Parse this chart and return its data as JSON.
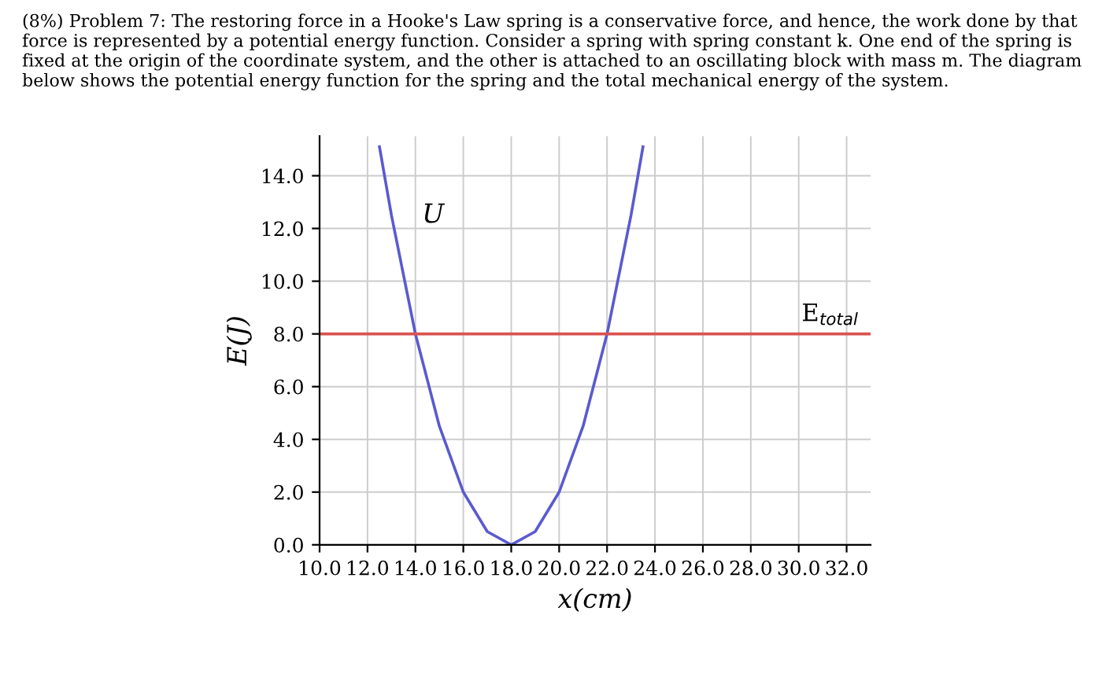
{
  "chart_data": {
    "type": "line",
    "annotations": [
      "(8%) Problem 7: The restoring force in a Hooke's Law spring is a conservative force, and hence, the work done by that force is represented by a potential energy function. Consider a spring with spring constant k. One end of the spring is fixed at the origin of the coordinate system, and the other is attached to an oscillating block with mass m. The diagram below shows the potential energy function for the spring and the total mechanical energy of the system."
    ],
    "xlabel": "x(cm)",
    "ylabel": "E(J)",
    "x": [
      12.5,
      13,
      14,
      15,
      16,
      17,
      18,
      19,
      20,
      21,
      22,
      23,
      23.5
    ],
    "series": [
      {
        "name": "U",
        "color": "#5a5ad0",
        "values": [
          15.1,
          12.5,
          8,
          4.5,
          2,
          0.5,
          0,
          0.5,
          2,
          4.5,
          8,
          12.5,
          15.1
        ]
      }
    ],
    "ref_lines": [
      {
        "axis": "y",
        "value": 8,
        "label": "E$_{total}$",
        "color": "#d9534f"
      }
    ],
    "xlim": [
      10,
      33
    ],
    "ylim": [
      0,
      15.5
    ],
    "xticks": [
      {
        "value": 10,
        "label": "10.0"
      },
      {
        "value": 12,
        "label": "12.0"
      },
      {
        "value": 14,
        "label": "14.0"
      },
      {
        "value": 16,
        "label": "16.0"
      },
      {
        "value": 18,
        "label": "18.0"
      },
      {
        "value": 20,
        "label": "20.0"
      },
      {
        "value": 22,
        "label": "22.0"
      },
      {
        "value": 24,
        "label": "24.0"
      },
      {
        "value": 26,
        "label": "26.0"
      },
      {
        "value": 28,
        "label": "28.0"
      },
      {
        "value": 30,
        "label": "30.0"
      },
      {
        "value": 32,
        "label": "32.0"
      }
    ],
    "yticks": [
      {
        "value": 0,
        "label": "0.0"
      },
      {
        "value": 2,
        "label": "2.0"
      },
      {
        "value": 4,
        "label": "4.0"
      },
      {
        "value": 6,
        "label": "6.0"
      },
      {
        "value": 8,
        "label": "8.0"
      },
      {
        "value": 10,
        "label": "10.0"
      },
      {
        "value": 12,
        "label": "12.0"
      },
      {
        "value": 14,
        "label": "14.0"
      }
    ],
    "grid": true,
    "marker": "none",
    "line_style": "solid"
  }
}
